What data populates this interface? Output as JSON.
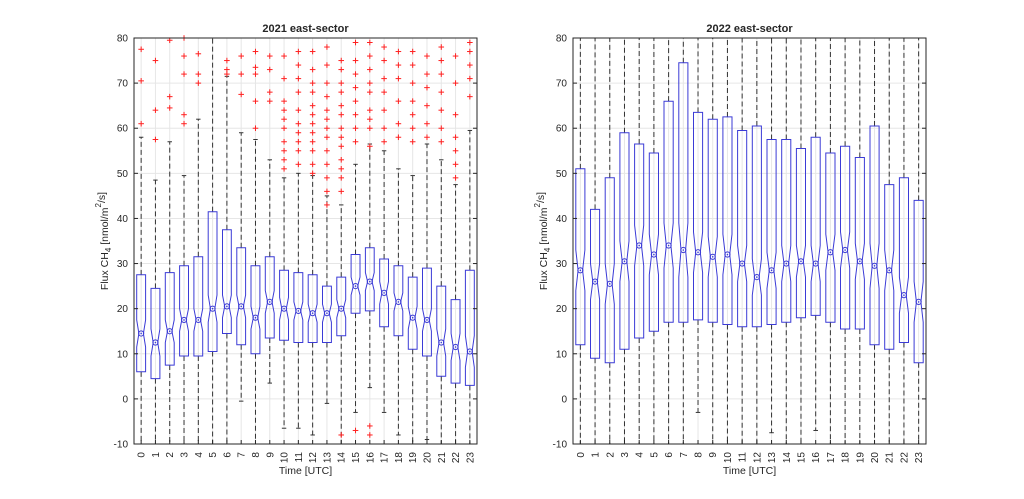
{
  "colors": {
    "box": "#3b3bd6",
    "outlier": "#ff2020",
    "whisker": "#333333",
    "grid": "#e6e6e6",
    "axis": "#262626"
  },
  "chart_data": [
    {
      "type": "box",
      "title": "2021 east-sector",
      "xlabel": "Time [UTC]",
      "ylabel_main": "Flux CH",
      "ylabel_sub": "4",
      "ylabel_unit_a": " [nmol/m",
      "ylabel_unit_sup": "2",
      "ylabel_unit_b": "/s]",
      "ylim": [
        -10,
        80
      ],
      "yticks": [
        -10,
        0,
        10,
        20,
        30,
        40,
        50,
        60,
        70,
        80
      ],
      "grid": true,
      "notched": true,
      "categories": [
        "0",
        "1",
        "2",
        "3",
        "4",
        "5",
        "6",
        "7",
        "8",
        "9",
        "10",
        "11",
        "12",
        "13",
        "14",
        "15",
        "16",
        "17",
        "18",
        "19",
        "20",
        "21",
        "22",
        "23"
      ],
      "boxes": [
        {
          "q1": 6,
          "median": 14.5,
          "q3": 27.5,
          "whislo": -10,
          "whishi": 58,
          "notch": [
            11.5,
            17.5
          ]
        },
        {
          "q1": 4.5,
          "median": 12.5,
          "q3": 24.5,
          "whislo": -10,
          "whishi": 48.5,
          "notch": [
            9.5,
            15.5
          ]
        },
        {
          "q1": 7.5,
          "median": 15,
          "q3": 28,
          "whislo": -10,
          "whishi": 57,
          "notch": [
            12.5,
            17.5
          ]
        },
        {
          "q1": 9.5,
          "median": 17.5,
          "q3": 29.5,
          "whislo": -10,
          "whishi": 49.5,
          "notch": [
            15,
            20
          ]
        },
        {
          "q1": 9.5,
          "median": 17.5,
          "q3": 31.5,
          "whislo": -10,
          "whishi": 62,
          "notch": [
            15,
            20
          ]
        },
        {
          "q1": 10.5,
          "median": 20,
          "q3": 41.5,
          "whislo": -10,
          "whishi": 80,
          "notch": [
            17,
            23
          ]
        },
        {
          "q1": 14.5,
          "median": 20.5,
          "q3": 37.5,
          "whislo": -10,
          "whishi": 71.5,
          "notch": [
            18,
            23
          ]
        },
        {
          "q1": 12,
          "median": 20.5,
          "q3": 33.5,
          "whislo": -0.5,
          "whishi": 59,
          "notch": [
            18,
            23
          ]
        },
        {
          "q1": 10,
          "median": 18,
          "q3": 29.5,
          "whislo": -10,
          "whishi": 57.5,
          "notch": [
            15.5,
            20.5
          ]
        },
        {
          "q1": 13.5,
          "median": 21.5,
          "q3": 31.5,
          "whislo": 3.5,
          "whishi": 53,
          "notch": [
            19,
            24
          ]
        },
        {
          "q1": 13,
          "median": 20,
          "q3": 28.5,
          "whislo": -6.5,
          "whishi": 49,
          "notch": [
            17.5,
            22.5
          ]
        },
        {
          "q1": 12.5,
          "median": 19.5,
          "q3": 28,
          "whislo": -6.5,
          "whishi": 50,
          "notch": [
            17.5,
            21.5
          ]
        },
        {
          "q1": 12.5,
          "median": 19,
          "q3": 27.5,
          "whislo": -8,
          "whishi": 49.5,
          "notch": [
            17,
            21
          ]
        },
        {
          "q1": 12.5,
          "median": 19,
          "q3": 25,
          "whislo": -1,
          "whishi": 45,
          "notch": [
            17,
            21
          ]
        },
        {
          "q1": 14,
          "median": 20,
          "q3": 27,
          "whislo": -10,
          "whishi": 43,
          "notch": [
            18,
            22
          ]
        },
        {
          "q1": 19,
          "median": 25,
          "q3": 32,
          "whislo": -3,
          "whishi": 52,
          "notch": [
            23,
            27
          ]
        },
        {
          "q1": 19.5,
          "median": 26,
          "q3": 33.5,
          "whislo": 2.5,
          "whishi": 56.5,
          "notch": [
            24,
            28
          ]
        },
        {
          "q1": 16,
          "median": 23.5,
          "q3": 31,
          "whislo": -3,
          "whishi": 55,
          "notch": [
            21,
            26
          ]
        },
        {
          "q1": 14,
          "median": 21.5,
          "q3": 29.5,
          "whislo": -8,
          "whishi": 51,
          "notch": [
            19.5,
            23.5
          ]
        },
        {
          "q1": 11,
          "median": 18,
          "q3": 27,
          "whislo": -10,
          "whishi": 49.5,
          "notch": [
            15.5,
            20.5
          ]
        },
        {
          "q1": 9.5,
          "median": 17.5,
          "q3": 29,
          "whislo": -9,
          "whishi": 56.5,
          "notch": [
            15,
            20
          ]
        },
        {
          "q1": 5,
          "median": 12.5,
          "q3": 25,
          "whislo": -10,
          "whishi": 53,
          "notch": [
            9.5,
            15.5
          ]
        },
        {
          "q1": 3.5,
          "median": 11.5,
          "q3": 22,
          "whislo": -10,
          "whishi": 47.5,
          "notch": [
            8.5,
            14.5
          ]
        },
        {
          "q1": 3,
          "median": 10.5,
          "q3": 28.5,
          "whislo": -10,
          "whishi": 59.5,
          "notch": [
            7,
            14
          ]
        }
      ],
      "outliers": [
        [
          61,
          70.5,
          77.5
        ],
        [
          57.5,
          64,
          75
        ],
        [
          64.5,
          67,
          79.5
        ],
        [
          61,
          63,
          72,
          76,
          80
        ],
        [
          70,
          72,
          76.5
        ],
        [],
        [
          72,
          73,
          75
        ],
        [
          67.5,
          72,
          76
        ],
        [
          60,
          66,
          72,
          73.5,
          77
        ],
        [
          66,
          68,
          73,
          76
        ],
        [
          51,
          53,
          55,
          57,
          60,
          62,
          64,
          66,
          71,
          76
        ],
        [
          52,
          55,
          57,
          59,
          61,
          64,
          68,
          71,
          74,
          77
        ],
        [
          50,
          52,
          55,
          57,
          59,
          61,
          63,
          65,
          68,
          70,
          73,
          77
        ],
        [
          43,
          46,
          49,
          52,
          55,
          58,
          60,
          62,
          64,
          67,
          70,
          74,
          78
        ],
        [
          -8,
          46,
          49,
          51,
          53,
          56,
          58,
          60,
          63,
          65,
          68,
          70,
          73,
          75
        ],
        [
          -7,
          57,
          60,
          63,
          66,
          69,
          72,
          75,
          79
        ],
        [
          -8,
          -6,
          56,
          60,
          62,
          64,
          68,
          70,
          73,
          76,
          79
        ],
        [
          57,
          60,
          64,
          68,
          71,
          75,
          78
        ],
        [
          58,
          61,
          66,
          71,
          74,
          77
        ],
        [
          57,
          60,
          63,
          66,
          70,
          74,
          77
        ],
        [
          58,
          61,
          65,
          69,
          72,
          76
        ],
        [
          57,
          60,
          64,
          68,
          72,
          75,
          78
        ],
        [
          49,
          52,
          55,
          58,
          63,
          70,
          76
        ],
        [
          67,
          71,
          74,
          77,
          79
        ]
      ]
    },
    {
      "type": "box",
      "title": "2022 east-sector",
      "xlabel": "Time [UTC]",
      "ylabel_main": "Flux CH",
      "ylabel_sub": "4",
      "ylabel_unit_a": " [nmol/m",
      "ylabel_unit_sup": "2",
      "ylabel_unit_b": "/s]",
      "ylim": [
        -10,
        80
      ],
      "yticks": [
        -10,
        0,
        10,
        20,
        30,
        40,
        50,
        60,
        70,
        80
      ],
      "grid": true,
      "notched": true,
      "categories": [
        "0",
        "1",
        "2",
        "3",
        "4",
        "5",
        "6",
        "7",
        "8",
        "9",
        "10",
        "11",
        "12",
        "13",
        "14",
        "15",
        "16",
        "17",
        "18",
        "19",
        "20",
        "21",
        "22",
        "23"
      ],
      "boxes": [
        {
          "q1": 12,
          "median": 28.5,
          "q3": 51,
          "whislo": -10,
          "whishi": 80,
          "notch": [
            24,
            33
          ]
        },
        {
          "q1": 9,
          "median": 26,
          "q3": 42,
          "whislo": -10,
          "whishi": 80,
          "notch": [
            22,
            30
          ]
        },
        {
          "q1": 8,
          "median": 25.5,
          "q3": 49,
          "whislo": -10,
          "whishi": 80,
          "notch": [
            21,
            30
          ]
        },
        {
          "q1": 11,
          "median": 30.5,
          "q3": 59,
          "whislo": -10,
          "whishi": 80,
          "notch": [
            26,
            35
          ]
        },
        {
          "q1": 13.5,
          "median": 34,
          "q3": 56.5,
          "whislo": -10,
          "whishi": 80,
          "notch": [
            29.5,
            38.5
          ]
        },
        {
          "q1": 15,
          "median": 32,
          "q3": 54.5,
          "whislo": -10,
          "whishi": 80,
          "notch": [
            27.5,
            36.5
          ]
        },
        {
          "q1": 17,
          "median": 34,
          "q3": 66,
          "whislo": -10,
          "whishi": 80,
          "notch": [
            29,
            39
          ]
        },
        {
          "q1": 17,
          "median": 33,
          "q3": 74.5,
          "whislo": -10,
          "whishi": 80,
          "notch": [
            27,
            39
          ]
        },
        {
          "q1": 17.5,
          "median": 32.5,
          "q3": 63.5,
          "whislo": -3,
          "whishi": 80,
          "notch": [
            28,
            37
          ]
        },
        {
          "q1": 17,
          "median": 31.5,
          "q3": 62,
          "whislo": -10,
          "whishi": 80,
          "notch": [
            27,
            36
          ]
        },
        {
          "q1": 16.5,
          "median": 32,
          "q3": 62.5,
          "whislo": -10,
          "whishi": 80,
          "notch": [
            27.5,
            36.5
          ]
        },
        {
          "q1": 16,
          "median": 30,
          "q3": 59.5,
          "whislo": -10,
          "whishi": 80,
          "notch": [
            26,
            34
          ]
        },
        {
          "q1": 16,
          "median": 27,
          "q3": 60.5,
          "whislo": -10,
          "whishi": 80,
          "notch": [
            23,
            31
          ]
        },
        {
          "q1": 16.5,
          "median": 28.5,
          "q3": 57.5,
          "whislo": -7.5,
          "whishi": 80,
          "notch": [
            24.5,
            32.5
          ]
        },
        {
          "q1": 17,
          "median": 30,
          "q3": 57.5,
          "whislo": -10,
          "whishi": 80,
          "notch": [
            26,
            34
          ]
        },
        {
          "q1": 18,
          "median": 30.5,
          "q3": 55.5,
          "whislo": -10,
          "whishi": 80,
          "notch": [
            27,
            34
          ]
        },
        {
          "q1": 18.5,
          "median": 30,
          "q3": 58,
          "whislo": -7,
          "whishi": 80,
          "notch": [
            26,
            34
          ]
        },
        {
          "q1": 17,
          "median": 32.5,
          "q3": 54.5,
          "whislo": -10,
          "whishi": 80,
          "notch": [
            28.5,
            36.5
          ]
        },
        {
          "q1": 15.5,
          "median": 33,
          "q3": 56,
          "whislo": -10,
          "whishi": 80,
          "notch": [
            29,
            37
          ]
        },
        {
          "q1": 15.5,
          "median": 30.5,
          "q3": 53.5,
          "whislo": -10,
          "whishi": 80,
          "notch": [
            26.5,
            34.5
          ]
        },
        {
          "q1": 12,
          "median": 29.5,
          "q3": 60.5,
          "whislo": -10,
          "whishi": 80,
          "notch": [
            24.5,
            34.5
          ]
        },
        {
          "q1": 11,
          "median": 28.5,
          "q3": 47.5,
          "whislo": -10,
          "whishi": 80,
          "notch": [
            24,
            33
          ]
        },
        {
          "q1": 12.5,
          "median": 23,
          "q3": 49,
          "whislo": -10,
          "whishi": 80,
          "notch": [
            19,
            27
          ]
        },
        {
          "q1": 8,
          "median": 21.5,
          "q3": 44,
          "whislo": -10,
          "whishi": 80,
          "notch": [
            17,
            26
          ]
        }
      ],
      "outliers": [
        [],
        [],
        [],
        [],
        [],
        [],
        [],
        [],
        [],
        [],
        [],
        [],
        [],
        [],
        [],
        [],
        [],
        [],
        [],
        [],
        [],
        [],
        [],
        []
      ]
    }
  ]
}
